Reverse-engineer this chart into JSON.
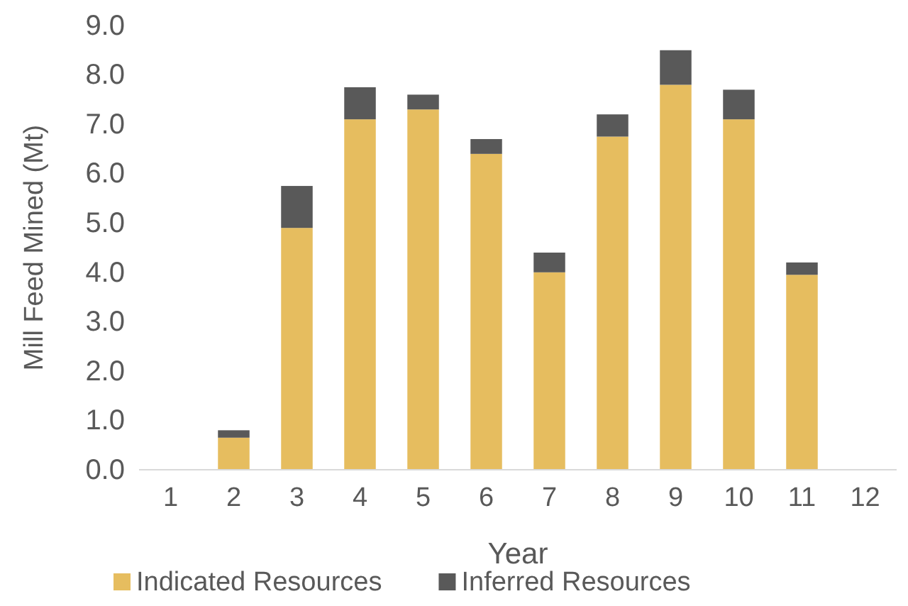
{
  "chart_data": {
    "type": "bar",
    "stacked": true,
    "xlabel": "Year",
    "ylabel": "Mill Feed Mined (Mt)",
    "x": [
      1,
      2,
      3,
      4,
      5,
      6,
      7,
      8,
      9,
      10,
      11,
      12
    ],
    "xlim": [
      0.5,
      12.5
    ],
    "xticks": [
      1,
      2,
      3,
      4,
      5,
      6,
      7,
      8,
      9,
      10,
      11,
      12
    ],
    "series": [
      {
        "name": "Indicated Resources",
        "color": "#e6bd5f",
        "values": [
          0,
          0.65,
          4.9,
          7.1,
          7.3,
          6.4,
          4.0,
          6.75,
          7.8,
          7.1,
          3.95,
          0
        ]
      },
      {
        "name": "Inferred Resources",
        "color": "#595959",
        "values": [
          0,
          0.15,
          0.85,
          0.65,
          0.3,
          0.3,
          0.4,
          0.45,
          0.7,
          0.6,
          0.25,
          0
        ]
      }
    ],
    "ylim": [
      0,
      9
    ],
    "yticks": [
      {
        "value": 0,
        "label": "0.0"
      },
      {
        "value": 1,
        "label": "1.0"
      },
      {
        "value": 2,
        "label": "2.0"
      },
      {
        "value": 3,
        "label": "3.0"
      },
      {
        "value": 4,
        "label": "4.0"
      },
      {
        "value": 5,
        "label": "5.0"
      },
      {
        "value": 6,
        "label": "6.0"
      },
      {
        "value": 7,
        "label": "7.0"
      },
      {
        "value": 8,
        "label": "8.0"
      },
      {
        "value": 9,
        "label": "9.0"
      }
    ],
    "grid": false,
    "legend": "bottom"
  }
}
